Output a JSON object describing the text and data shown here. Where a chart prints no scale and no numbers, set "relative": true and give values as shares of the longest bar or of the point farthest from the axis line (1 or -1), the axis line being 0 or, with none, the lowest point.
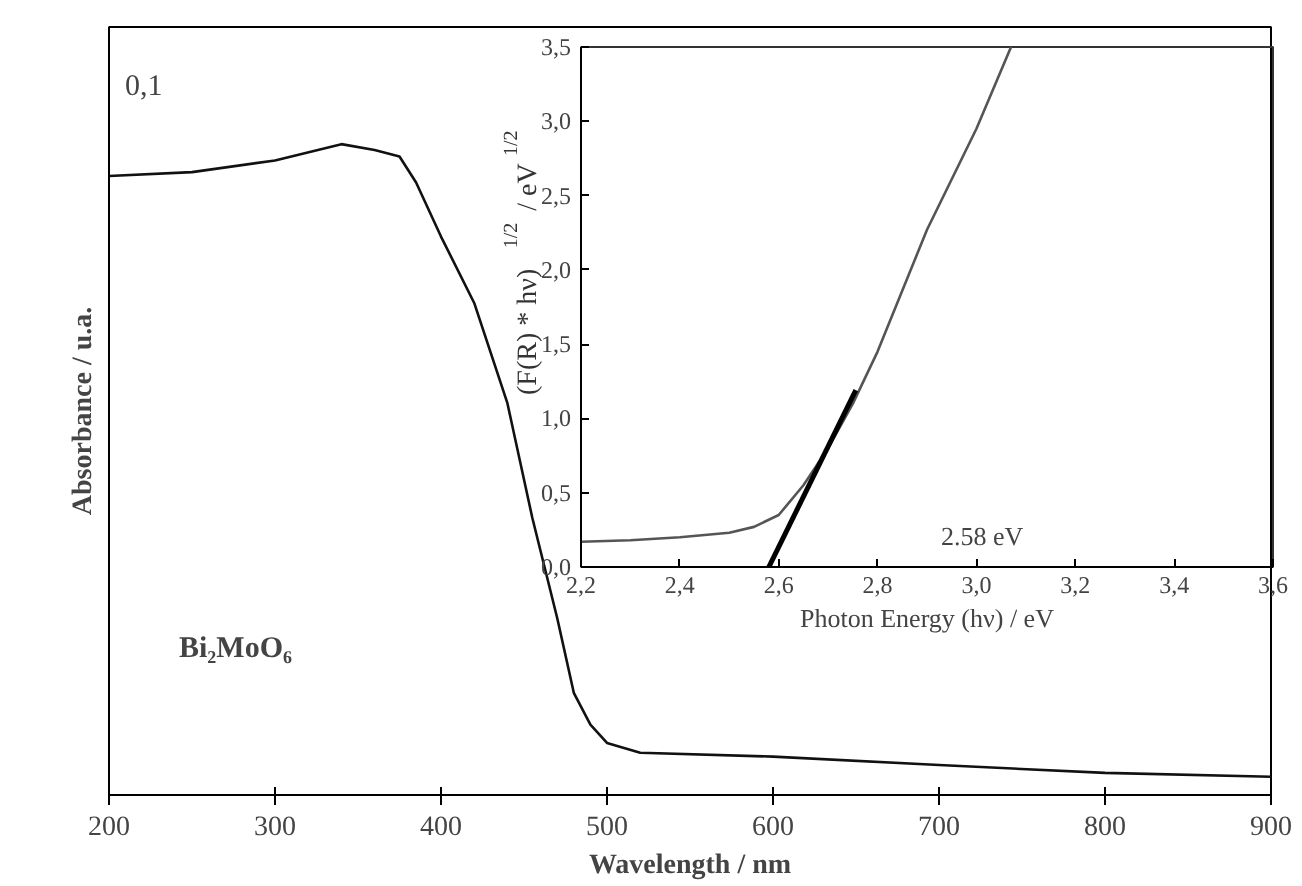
{
  "chart_data": [
    {
      "type": "line",
      "xlabel": "Wavelength / nm",
      "ylabel": "Absorbance / u.a.",
      "relative": true,
      "xlim": [
        200,
        900
      ],
      "xticks": [
        200,
        300,
        400,
        500,
        600,
        700,
        800,
        900
      ],
      "annotations": [
        "0,1",
        "Bi₂MoO₆"
      ],
      "grid": false,
      "x": [
        200,
        250,
        300,
        340,
        360,
        375,
        385,
        400,
        420,
        440,
        455,
        470,
        480,
        490,
        500,
        520,
        600,
        700,
        800,
        900
      ],
      "series": [
        {
          "color": "#111111",
          "values": [
            0.951,
            0.957,
            0.975,
            1.0,
            0.991,
            0.981,
            0.941,
            0.858,
            0.756,
            0.602,
            0.426,
            0.272,
            0.157,
            0.108,
            0.08,
            0.065,
            0.059,
            0.046,
            0.034,
            0.028
          ]
        }
      ]
    },
    {
      "type": "line",
      "xlabel": "Photon Energy (hν) / eV",
      "ylabel": "(F(R) * hν)$^{1/2}$ / eV$^{1/2}$",
      "xlim": [
        2.2,
        3.6
      ],
      "ylim": [
        0,
        3.5
      ],
      "grid": false,
      "xticks": [
        {
          "value": 2.2,
          "label": "2,2"
        },
        {
          "value": 2.4,
          "label": "2,4"
        },
        {
          "value": 2.6,
          "label": "2,6"
        },
        {
          "value": 2.8,
          "label": "2,8"
        },
        {
          "value": 3.0,
          "label": "3,0"
        },
        {
          "value": 3.2,
          "label": "3,2"
        },
        {
          "value": 3.4,
          "label": "3,4"
        },
        {
          "value": 3.6,
          "label": "3,6"
        }
      ],
      "yticks": [
        {
          "value": 0,
          "label": "0,0"
        },
        {
          "value": 0.5,
          "label": "0,5"
        },
        {
          "value": 1.0,
          "label": "1,0"
        },
        {
          "value": 1.5,
          "label": "1,5"
        },
        {
          "value": 2.0,
          "label": "2,0"
        },
        {
          "value": 2.5,
          "label": "2,5"
        },
        {
          "value": 3.0,
          "label": "3,0"
        },
        {
          "value": 3.5,
          "label": "3,5"
        }
      ],
      "annotations": [
        "2.58 eV"
      ],
      "series": [
        {
          "color": "#555555",
          "x": [
            2.2,
            2.3,
            2.4,
            2.5,
            2.55,
            2.6,
            2.65,
            2.7,
            2.75,
            2.8,
            2.9,
            3.0,
            3.07
          ],
          "values": [
            0.17,
            0.18,
            0.2,
            0.23,
            0.27,
            0.35,
            0.55,
            0.8,
            1.1,
            1.45,
            2.27,
            2.95,
            3.5
          ]
        },
        {
          "color": "#000000",
          "x": [
            2.58,
            2.756
          ],
          "values": [
            0,
            1.19
          ]
        }
      ]
    }
  ]
}
